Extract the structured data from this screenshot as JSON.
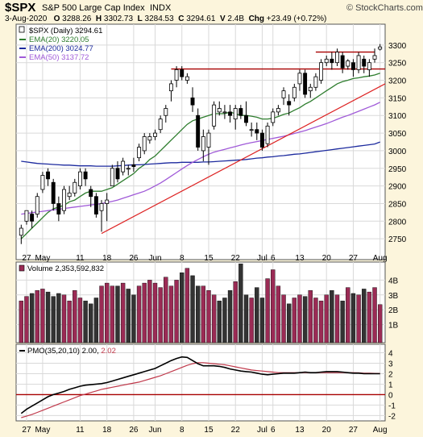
{
  "header": {
    "symbol": "$SPX",
    "name": "S&P 500 Large Cap Index",
    "exchange": "INDX",
    "watermark": "© StockCharts.com",
    "quote_line": {
      "date": "3-Aug-2020",
      "open_label": "O",
      "open": "3288.26",
      "high_label": "H",
      "high": "3302.73",
      "low_label": "L",
      "low": "3284.53",
      "close_label": "C",
      "close": "3294.61",
      "volume_label": "V",
      "volume": "2.4B",
      "change_label": "Chg",
      "change": "+23.49 (+0.72%)"
    }
  },
  "legend": {
    "price": "$SPX (Daily) 3294.61",
    "ema20": "EMA(20) 3220.05",
    "ema200": "EMA(200) 3024.77",
    "ema50": "EMA(50) 3137.72",
    "volume": "Volume 2,353,592,832",
    "pmo_prefix": "PMO(35,20,10) 2.00,",
    "pmo_signal": "2.02"
  },
  "colors": {
    "background": "#fcf5dc",
    "panel": "#ffffff",
    "grid": "#d9d9d9",
    "up_candle": "#ffffff",
    "down_candle": "#000000",
    "ema20": "#2e7d2e",
    "ema200": "#1c2a9e",
    "ema50": "#a05ad8",
    "trendline": "#dd2222",
    "resistance": "#a80000",
    "volume_up": "#9b2b55",
    "volume_down": "#333333",
    "pmo": "#000000",
    "pmo_signal": "#c0394b",
    "zero_line": "#a80000"
  },
  "chart_data": [
    {
      "type": "candlestick",
      "title": "$SPX (Daily)",
      "ylim": [
        2700,
        3350
      ],
      "y_ticks": [
        2750,
        2800,
        2850,
        2900,
        2950,
        3000,
        3050,
        3100,
        3150,
        3200,
        3250,
        3300
      ],
      "x_tick_labels": [
        {
          "label": "27",
          "index": 1
        },
        {
          "label": "May",
          "index": 4
        },
        {
          "label": "11",
          "index": 11
        },
        {
          "label": "18",
          "index": 16
        },
        {
          "label": "26",
          "index": 21
        },
        {
          "label": "Jun",
          "index": 25
        },
        {
          "label": "8",
          "index": 30
        },
        {
          "label": "15",
          "index": 35
        },
        {
          "label": "22",
          "index": 40
        },
        {
          "label": "Jul",
          "index": 45
        },
        {
          "label": "6",
          "index": 47
        },
        {
          "label": "13",
          "index": 52
        },
        {
          "label": "20",
          "index": 57
        },
        {
          "label": "27",
          "index": 62
        },
        {
          "label": "Aug",
          "index": 67
        }
      ],
      "ohlc": [
        [
          2760,
          2790,
          2735,
          2780
        ],
        [
          2800,
          2830,
          2790,
          2830
        ],
        [
          2820,
          2830,
          2780,
          2800
        ],
        [
          2820,
          2880,
          2810,
          2870
        ],
        [
          2890,
          2940,
          2880,
          2930
        ],
        [
          2940,
          2950,
          2900,
          2920
        ],
        [
          2910,
          2920,
          2830,
          2850
        ],
        [
          2850,
          2870,
          2800,
          2820
        ],
        [
          2830,
          2900,
          2820,
          2890
        ],
        [
          2870,
          2900,
          2860,
          2880
        ],
        [
          2880,
          2920,
          2870,
          2910
        ],
        [
          2900,
          2950,
          2890,
          2940
        ],
        [
          2940,
          2950,
          2900,
          2920
        ],
        [
          2890,
          2900,
          2840,
          2870
        ],
        [
          2870,
          2880,
          2810,
          2820
        ],
        [
          2830,
          2860,
          2770,
          2850
        ],
        [
          2850,
          2880,
          2800,
          2860
        ],
        [
          2900,
          2960,
          2900,
          2950
        ],
        [
          2950,
          2970,
          2910,
          2920
        ],
        [
          2940,
          2980,
          2930,
          2970
        ],
        [
          2950,
          2960,
          2930,
          2950
        ],
        [
          2960,
          2980,
          2940,
          2955
        ],
        [
          2980,
          3020,
          2970,
          3010
        ],
        [
          3000,
          3050,
          2990,
          3040
        ],
        [
          3030,
          3050,
          3020,
          3040
        ],
        [
          3040,
          3060,
          3030,
          3050
        ],
        [
          3060,
          3100,
          3050,
          3090
        ],
        [
          3100,
          3130,
          3080,
          3120
        ],
        [
          3170,
          3200,
          3140,
          3190
        ],
        [
          3200,
          3240,
          3180,
          3230
        ],
        [
          3230,
          3240,
          3200,
          3210
        ],
        [
          3200,
          3220,
          3190,
          3210
        ],
        [
          3150,
          3180,
          3110,
          3130
        ],
        [
          3100,
          3120,
          3000,
          3010
        ],
        [
          3000,
          3060,
          2970,
          3040
        ],
        [
          3010,
          3060,
          2960,
          3050
        ],
        [
          3070,
          3140,
          3060,
          3130
        ],
        [
          3110,
          3140,
          3100,
          3120
        ],
        [
          3110,
          3130,
          3090,
          3110
        ],
        [
          3110,
          3130,
          3080,
          3100
        ],
        [
          3090,
          3130,
          3060,
          3120
        ],
        [
          3120,
          3130,
          3090,
          3100
        ],
        [
          3100,
          3140,
          3070,
          3080
        ],
        [
          3060,
          3080,
          3040,
          3060
        ],
        [
          3060,
          3080,
          3030,
          3050
        ],
        [
          3050,
          3060,
          3000,
          3010
        ],
        [
          3020,
          3080,
          3010,
          3070
        ],
        [
          3080,
          3120,
          3070,
          3110
        ],
        [
          3110,
          3130,
          3100,
          3120
        ],
        [
          3150,
          3180,
          3130,
          3170
        ],
        [
          3140,
          3160,
          3100,
          3130
        ],
        [
          3150,
          3190,
          3140,
          3180
        ],
        [
          3190,
          3230,
          3170,
          3220
        ],
        [
          3220,
          3230,
          3150,
          3160
        ],
        [
          3170,
          3190,
          3150,
          3180
        ],
        [
          3180,
          3220,
          3170,
          3210
        ],
        [
          3200,
          3260,
          3190,
          3250
        ],
        [
          3250,
          3270,
          3240,
          3260
        ],
        [
          3260,
          3280,
          3230,
          3250
        ],
        [
          3250,
          3290,
          3240,
          3280
        ],
        [
          3270,
          3280,
          3220,
          3235
        ],
        [
          3240,
          3260,
          3230,
          3255
        ],
        [
          3250,
          3260,
          3210,
          3230
        ],
        [
          3230,
          3280,
          3220,
          3270
        ],
        [
          3260,
          3270,
          3220,
          3240
        ],
        [
          3230,
          3260,
          3210,
          3250
        ],
        [
          3260,
          3290,
          3250,
          3270
        ],
        [
          3288.26,
          3302.73,
          3284.53,
          3294.61
        ]
      ],
      "series": [
        {
          "name": "EMA(20)",
          "values": [
            2750,
            2765,
            2780,
            2795,
            2810,
            2825,
            2835,
            2840,
            2845,
            2855,
            2860,
            2870,
            2880,
            2885,
            2885,
            2885,
            2890,
            2895,
            2905,
            2915,
            2925,
            2935,
            2950,
            2960,
            2975,
            2985,
            3000,
            3015,
            3030,
            3045,
            3060,
            3075,
            3085,
            3090,
            3095,
            3100,
            3105,
            3105,
            3105,
            3110,
            3105,
            3100,
            3100,
            3098,
            3095,
            3090,
            3090,
            3092,
            3097,
            3103,
            3107,
            3115,
            3122,
            3132,
            3140,
            3150,
            3160,
            3170,
            3180,
            3190,
            3196,
            3200,
            3205,
            3207,
            3210,
            3212,
            3215,
            3220.05
          ]
        },
        {
          "name": "EMA(200)",
          "values": [
            2970,
            2968,
            2966,
            2964,
            2963,
            2962,
            2961,
            2960,
            2959,
            2959,
            2958,
            2957,
            2957,
            2957,
            2956,
            2956,
            2956,
            2956,
            2957,
            2958,
            2959,
            2960,
            2960,
            2961,
            2962,
            2963,
            2964,
            2965,
            2966,
            2966,
            2967,
            2967,
            2967,
            2967,
            2968,
            2968,
            2969,
            2970,
            2971,
            2972,
            2973,
            2974,
            2975,
            2977,
            2979,
            2980,
            2982,
            2983,
            2985,
            2986,
            2988,
            2990,
            2991,
            2993,
            2995,
            2997,
            2999,
            3001,
            3003,
            3005,
            3007,
            3009,
            3011,
            3013,
            3015,
            3017,
            3019,
            3024.77
          ]
        },
        {
          "name": "EMA(50)",
          "values": [
            2820,
            2822,
            2824,
            2826,
            2828,
            2830,
            2832,
            2834,
            2836,
            2838,
            2840,
            2842,
            2844,
            2846,
            2848,
            2850,
            2853,
            2856,
            2860,
            2865,
            2870,
            2875,
            2880,
            2885,
            2892,
            2900,
            2908,
            2918,
            2928,
            2938,
            2948,
            2958,
            2967,
            2975,
            2983,
            2990,
            2996,
            3000,
            3004,
            3008,
            3012,
            3016,
            3020,
            3023,
            3026,
            3029,
            3032,
            3035,
            3038,
            3041,
            3045,
            3049,
            3053,
            3057,
            3062,
            3067,
            3072,
            3077,
            3083,
            3089,
            3095,
            3100,
            3106,
            3112,
            3118,
            3124,
            3130,
            3137.72
          ]
        }
      ],
      "trendline": {
        "from_index": 15,
        "from_value": 2765,
        "to_index": 68,
        "to_value": 3190
      },
      "resistance_lines": [
        {
          "value": 3232,
          "from_index": 28,
          "to_index": 68
        },
        {
          "value": 3280,
          "from_index": 55,
          "to_index": 66
        }
      ]
    },
    {
      "type": "bar",
      "title": "Volume",
      "ylim": [
        0,
        5
      ],
      "y_ticks": [
        1,
        2,
        3,
        4
      ],
      "y_tick_labels": [
        "1B",
        "2B",
        "3B",
        "4B"
      ],
      "values": [
        2.6,
        2.9,
        3.1,
        3.3,
        3.4,
        3.2,
        2.9,
        3.1,
        3.0,
        2.6,
        3.3,
        2.8,
        2.6,
        2.4,
        2.8,
        3.6,
        3.8,
        3.6,
        3.6,
        3.8,
        3.4,
        3.0,
        3.6,
        3.8,
        4.0,
        3.8,
        3.5,
        4.2,
        3.6,
        4.0,
        4.5,
        4.8,
        4.3,
        3.6,
        3.6,
        3.3,
        3.0,
        2.6,
        2.8,
        3.3,
        3.9,
        5.1,
        3.0,
        2.8,
        3.5,
        2.8,
        4.1,
        4.7,
        3.6,
        3.0,
        2.4,
        2.8,
        3.0,
        2.9,
        3.3,
        2.8,
        2.6,
        3.0,
        3.3,
        3.0,
        2.6,
        3.5,
        3.1,
        3.0,
        3.4,
        3.2,
        3.5,
        2.35
      ],
      "up": [
        true,
        true,
        false,
        true,
        true,
        false,
        false,
        false,
        true,
        true,
        true,
        true,
        false,
        false,
        false,
        true,
        true,
        true,
        false,
        true,
        false,
        false,
        true,
        true,
        true,
        true,
        true,
        true,
        true,
        true,
        false,
        true,
        false,
        false,
        true,
        true,
        true,
        false,
        false,
        false,
        true,
        false,
        false,
        true,
        false,
        false,
        true,
        true,
        true,
        true,
        false,
        true,
        true,
        false,
        true,
        true,
        true,
        true,
        false,
        true,
        false,
        true,
        false,
        true,
        false,
        true,
        true,
        true
      ]
    },
    {
      "type": "line",
      "title": "PMO(35,20,10)",
      "ylim": [
        -2.2,
        4.5
      ],
      "y_ticks": [
        -2,
        -1,
        0,
        1,
        2,
        3,
        4
      ],
      "series": [
        {
          "name": "PMO",
          "values": [
            -1.8,
            -1.4,
            -1.1,
            -0.8,
            -0.5,
            -0.2,
            0.0,
            0.15,
            0.3,
            0.5,
            0.65,
            0.8,
            0.9,
            0.95,
            1.0,
            1.05,
            1.15,
            1.3,
            1.45,
            1.6,
            1.75,
            1.9,
            2.05,
            2.2,
            2.35,
            2.5,
            2.75,
            3.0,
            3.25,
            3.45,
            3.6,
            3.55,
            3.25,
            2.95,
            2.75,
            2.75,
            2.75,
            2.7,
            2.6,
            2.45,
            2.35,
            2.25,
            2.2,
            2.15,
            2.05,
            1.95,
            1.9,
            1.95,
            2.0,
            2.05,
            2.05,
            2.05,
            2.1,
            2.15,
            2.1,
            2.1,
            2.15,
            2.2,
            2.2,
            2.2,
            2.15,
            2.1,
            2.05,
            2.05,
            2.0,
            2.0,
            2.0,
            2.0
          ]
        },
        {
          "name": "Signal",
          "values": [
            -2.2,
            -2.05,
            -1.9,
            -1.7,
            -1.5,
            -1.3,
            -1.1,
            -0.9,
            -0.7,
            -0.5,
            -0.3,
            -0.1,
            0.05,
            0.2,
            0.35,
            0.5,
            0.6,
            0.7,
            0.8,
            0.9,
            1.0,
            1.1,
            1.2,
            1.35,
            1.5,
            1.65,
            1.8,
            2.0,
            2.2,
            2.4,
            2.6,
            2.8,
            2.95,
            3.05,
            3.05,
            3.0,
            2.95,
            2.9,
            2.85,
            2.75,
            2.65,
            2.55,
            2.45,
            2.35,
            2.3,
            2.25,
            2.2,
            2.15,
            2.1,
            2.1,
            2.1,
            2.1,
            2.1,
            2.1,
            2.1,
            2.1,
            2.1,
            2.1,
            2.1,
            2.1,
            2.1,
            2.1,
            2.1,
            2.08,
            2.05,
            2.04,
            2.03,
            2.02
          ]
        }
      ]
    }
  ]
}
